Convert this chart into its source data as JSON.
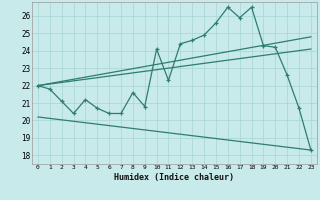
{
  "xlabel": "Humidex (Indice chaleur)",
  "bg_color": "#c8eaeb",
  "line_color": "#2e7d6e",
  "grid_color": "#a8d4d4",
  "xlim": [
    -0.5,
    23.5
  ],
  "ylim": [
    17.5,
    26.8
  ],
  "yticks": [
    18,
    19,
    20,
    21,
    22,
    23,
    24,
    25,
    26
  ],
  "xticks": [
    0,
    1,
    2,
    3,
    4,
    5,
    6,
    7,
    8,
    9,
    10,
    11,
    12,
    13,
    14,
    15,
    16,
    17,
    18,
    19,
    20,
    21,
    22,
    23
  ],
  "curve1_x": [
    0,
    1,
    2,
    3,
    4,
    5,
    6,
    7,
    8,
    9,
    10,
    11,
    12,
    13,
    14,
    15,
    16,
    17,
    18,
    19,
    20,
    21,
    22,
    23
  ],
  "curve1_y": [
    22.0,
    21.8,
    21.1,
    20.4,
    21.2,
    20.7,
    20.4,
    20.4,
    21.6,
    20.8,
    24.1,
    22.3,
    24.4,
    24.6,
    24.9,
    25.6,
    26.5,
    25.9,
    26.5,
    24.3,
    24.2,
    22.6,
    20.7,
    18.3
  ],
  "curve2_x": [
    0,
    23
  ],
  "curve2_y": [
    22.0,
    24.8
  ],
  "curve3_x": [
    0,
    23
  ],
  "curve3_y": [
    22.0,
    24.1
  ],
  "curve4_x": [
    0,
    23
  ],
  "curve4_y": [
    20.2,
    18.3
  ]
}
